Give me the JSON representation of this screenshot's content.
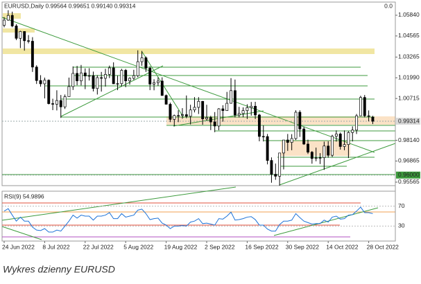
{
  "header": "EURUSD,Daily  0.99564 0.99651 0.99140 0.99314",
  "corner_value": "0.0",
  "caption": "Wykres dzienny EURUSD",
  "chart_data": [
    {
      "type": "candlestick",
      "categories": [
        "24 Jun 2022",
        null,
        null,
        null,
        null,
        null,
        null,
        null,
        null,
        null,
        "8 Jul 2022",
        null,
        null,
        null,
        null,
        null,
        null,
        null,
        null,
        null,
        "22 Jul 2022",
        null,
        null,
        null,
        null,
        null,
        null,
        null,
        null,
        null,
        "5 Aug 2022",
        null,
        null,
        null,
        null,
        null,
        null,
        null,
        null,
        null,
        "19 Aug 2022",
        null,
        null,
        null,
        null,
        null,
        null,
        null,
        null,
        null,
        "2 Sep 2022",
        null,
        null,
        null,
        null,
        null,
        null,
        null,
        null,
        null,
        "16 Sep 2022",
        null,
        null,
        null,
        null,
        null,
        null,
        null,
        null,
        null,
        "30 Sep 2022",
        null,
        null,
        null,
        null,
        null,
        null,
        null,
        null,
        null,
        "14 Oct 2022",
        null,
        null,
        null,
        null,
        null,
        null,
        null,
        null,
        null,
        "28 Oct 2022",
        null
      ],
      "ohlc": [
        [
          1.0522,
          1.0572,
          1.051,
          1.0554
        ],
        [
          1.0554,
          1.0615,
          1.055,
          1.0583
        ],
        [
          1.0583,
          1.0606,
          1.051,
          1.0518
        ],
        [
          1.0518,
          1.0529,
          1.0431,
          1.0442
        ],
        [
          1.0442,
          1.0488,
          1.0382,
          1.0484
        ],
        [
          1.0484,
          1.0486,
          1.0366,
          1.0427
        ],
        [
          1.0427,
          1.0462,
          1.0411,
          1.0424
        ],
        [
          1.0424,
          1.0449,
          1.0235,
          1.0265
        ],
        [
          1.0265,
          1.0276,
          1.0161,
          1.0182
        ],
        [
          1.0182,
          1.0215,
          1.0144,
          1.0162
        ],
        [
          1.0162,
          1.02,
          1.0072,
          1.0184
        ],
        [
          1.0184,
          1.0189,
          1.0035,
          1.004
        ],
        [
          1.004,
          1.007,
          1.0,
          1.0036
        ],
        [
          1.0036,
          1.0122,
          0.9998,
          1.0059
        ],
        [
          1.0059,
          1.0093,
          0.9952,
          1.002
        ],
        [
          1.002,
          1.0096,
          1.0007,
          1.0083
        ],
        [
          1.0083,
          1.02,
          1.0083,
          1.0145
        ],
        [
          1.0145,
          1.0269,
          1.0124,
          1.0226
        ],
        [
          1.0226,
          1.0272,
          1.0153,
          1.018
        ],
        [
          1.018,
          1.0278,
          1.0152,
          1.0229
        ],
        [
          1.0229,
          1.0257,
          1.0129,
          1.021
        ],
        [
          1.021,
          1.0258,
          1.0182,
          1.0212
        ],
        [
          1.0212,
          1.0237,
          1.0115,
          1.0133
        ],
        [
          1.0133,
          1.0215,
          1.0096,
          1.02
        ],
        [
          1.02,
          1.0235,
          1.0114,
          1.0196
        ],
        [
          1.0196,
          1.0254,
          1.0145,
          1.022
        ],
        [
          1.022,
          1.0274,
          1.0197,
          1.026
        ],
        [
          1.026,
          1.0294,
          1.0161,
          1.0162
        ],
        [
          1.0162,
          1.0212,
          1.0123,
          1.0163
        ],
        [
          1.0163,
          1.0254,
          1.0146,
          1.0245
        ],
        [
          1.0245,
          1.0253,
          1.0141,
          1.018
        ],
        [
          1.018,
          1.0202,
          1.0157,
          1.0196
        ],
        [
          1.0196,
          1.0248,
          1.0186,
          1.0212
        ],
        [
          1.0212,
          1.0368,
          1.0202,
          1.0298
        ],
        [
          1.0298,
          1.0364,
          1.0273,
          1.0322
        ],
        [
          1.0322,
          1.033,
          1.0235,
          1.0258
        ],
        [
          1.0258,
          1.0269,
          1.0123,
          1.016
        ],
        [
          1.016,
          1.019,
          1.0122,
          1.0169
        ],
        [
          1.0169,
          1.0202,
          1.015,
          1.0179
        ],
        [
          1.0179,
          1.0202,
          1.0088,
          1.009
        ],
        [
          1.009,
          1.0096,
          1.0034,
          1.0036
        ],
        [
          1.0036,
          1.0046,
          0.9926,
          0.9943
        ],
        [
          0.9943,
          0.9972,
          0.99,
          0.9967
        ],
        [
          0.9967,
          0.9999,
          0.9926,
          0.9967
        ],
        [
          0.9967,
          1.0012,
          0.9947,
          0.9972
        ],
        [
          0.9972,
          1.009,
          0.995,
          0.9962
        ],
        [
          0.9962,
          1.0033,
          0.9912,
          1.0001
        ],
        [
          1.0001,
          1.008,
          0.9986,
          1.0017
        ],
        [
          1.0017,
          1.008,
          0.9976,
          1.0054
        ],
        [
          1.0054,
          1.0056,
          0.991,
          0.9946
        ],
        [
          0.9946,
          1.0033,
          0.9935,
          0.9954
        ],
        [
          0.9954,
          0.9965,
          0.9877,
          0.9927
        ],
        [
          0.9927,
          0.9988,
          0.9864,
          0.9902
        ],
        [
          0.9902,
          1.0012,
          0.9876,
          1.0008
        ],
        [
          1.0008,
          1.003,
          0.9929,
          0.9997
        ],
        [
          0.9997,
          1.0112,
          0.9995,
          1.0042
        ],
        [
          1.0042,
          1.0197,
          1.004,
          1.012
        ],
        [
          1.012,
          1.0188,
          0.9955,
          0.997
        ],
        [
          0.997,
          1.002,
          0.9955,
          0.9979
        ],
        [
          0.9979,
          1.0017,
          0.9956,
          0.9997
        ],
        [
          0.9997,
          1.0036,
          0.9945,
          1.0015
        ],
        [
          1.0015,
          1.005,
          0.9966,
          1.0024
        ],
        [
          1.0024,
          1.0051,
          0.9945,
          0.997
        ],
        [
          0.997,
          0.9977,
          0.9808,
          0.9838
        ],
        [
          0.9838,
          0.9906,
          0.9807,
          0.9837
        ],
        [
          0.9837,
          0.9853,
          0.9666,
          0.969
        ],
        [
          0.969,
          0.9709,
          0.9553,
          0.9605
        ],
        [
          0.9605,
          0.9671,
          0.9571,
          0.9593
        ],
        [
          0.9593,
          0.9737,
          0.9535,
          0.9736
        ],
        [
          0.9736,
          0.9815,
          0.9635,
          0.9816
        ],
        [
          0.9816,
          0.9853,
          0.9749,
          0.9801
        ],
        [
          0.9801,
          0.9852,
          0.9753,
          0.9825
        ],
        [
          0.9825,
          0.9999,
          0.9816,
          0.9987
        ],
        [
          0.9987,
          0.9999,
          0.9835,
          0.9884
        ],
        [
          0.9884,
          0.9898,
          0.9786,
          0.9791
        ],
        [
          0.9791,
          0.9818,
          0.973,
          0.9741
        ],
        [
          0.9741,
          0.9748,
          0.967,
          0.9702
        ],
        [
          0.9702,
          0.9769,
          0.9685,
          0.9706
        ],
        [
          0.9706,
          0.9735,
          0.9668,
          0.9707
        ],
        [
          0.9707,
          0.9806,
          0.9632,
          0.9779
        ],
        [
          0.9779,
          0.9808,
          0.9707,
          0.9722
        ],
        [
          0.9722,
          0.9848,
          0.9712,
          0.9839
        ],
        [
          0.9839,
          0.9875,
          0.9806,
          0.9853
        ],
        [
          0.9853,
          0.9862,
          0.9757,
          0.9776
        ],
        [
          0.9776,
          0.9875,
          0.9753,
          0.9788
        ],
        [
          0.9788,
          0.987,
          0.9705,
          0.9862
        ],
        [
          0.9862,
          0.99,
          0.9807,
          0.9877
        ],
        [
          0.9877,
          0.9976,
          0.9853,
          0.9965
        ],
        [
          0.9965,
          1.0088,
          0.9963,
          1.0078
        ],
        [
          1.0078,
          1.0093,
          0.9955,
          0.9965
        ],
        [
          0.9965,
          0.9998,
          0.9931,
          0.9965
        ],
        [
          0.99564,
          0.99651,
          0.9914,
          0.99314
        ]
      ],
      "up_color": "#ffffff",
      "down_color": "#000000",
      "ylim": [
        0.9535,
        1.0665
      ],
      "yticks": [
        {
          "value": 1.0584,
          "label": "1.05840"
        },
        1.04565,
        1.03265,
        {
          "value": 1.0199,
          "label": "1.01990"
        },
        1.00715,
        {
          "value": 0.9814,
          "label": "0.98140"
        },
        0.96865,
        0.95565
      ],
      "marked_levels": [
        {
          "value": 0.99314,
          "color": "#d9d9d9"
        },
        {
          "value": 0.96,
          "label": "0.96000",
          "color": "#3c9a3c"
        }
      ]
    },
    {
      "type": "line",
      "title": "RSI(9) 54.9896",
      "values": [
        60,
        65,
        52,
        40,
        48,
        40,
        40,
        28,
        22,
        21,
        25,
        18,
        18,
        22,
        20,
        30,
        40,
        52,
        46,
        52,
        50,
        50,
        42,
        50,
        50,
        52,
        57,
        45,
        45,
        55,
        48,
        50,
        52,
        62,
        64,
        55,
        43,
        45,
        46,
        36,
        32,
        25,
        30,
        30,
        31,
        30,
        38,
        40,
        45,
        35,
        36,
        34,
        32,
        45,
        44,
        50,
        58,
        42,
        43,
        45,
        48,
        49,
        43,
        32,
        32,
        24,
        20,
        20,
        33,
        40,
        40,
        42,
        55,
        47,
        40,
        37,
        34,
        35,
        35,
        42,
        38,
        48,
        50,
        44,
        45,
        52,
        53,
        60,
        68,
        57,
        57,
        54.9896
      ],
      "color": "#1e73d8",
      "ylim": [
        0,
        100
      ],
      "yticks": [
        70,
        30
      ]
    }
  ]
}
